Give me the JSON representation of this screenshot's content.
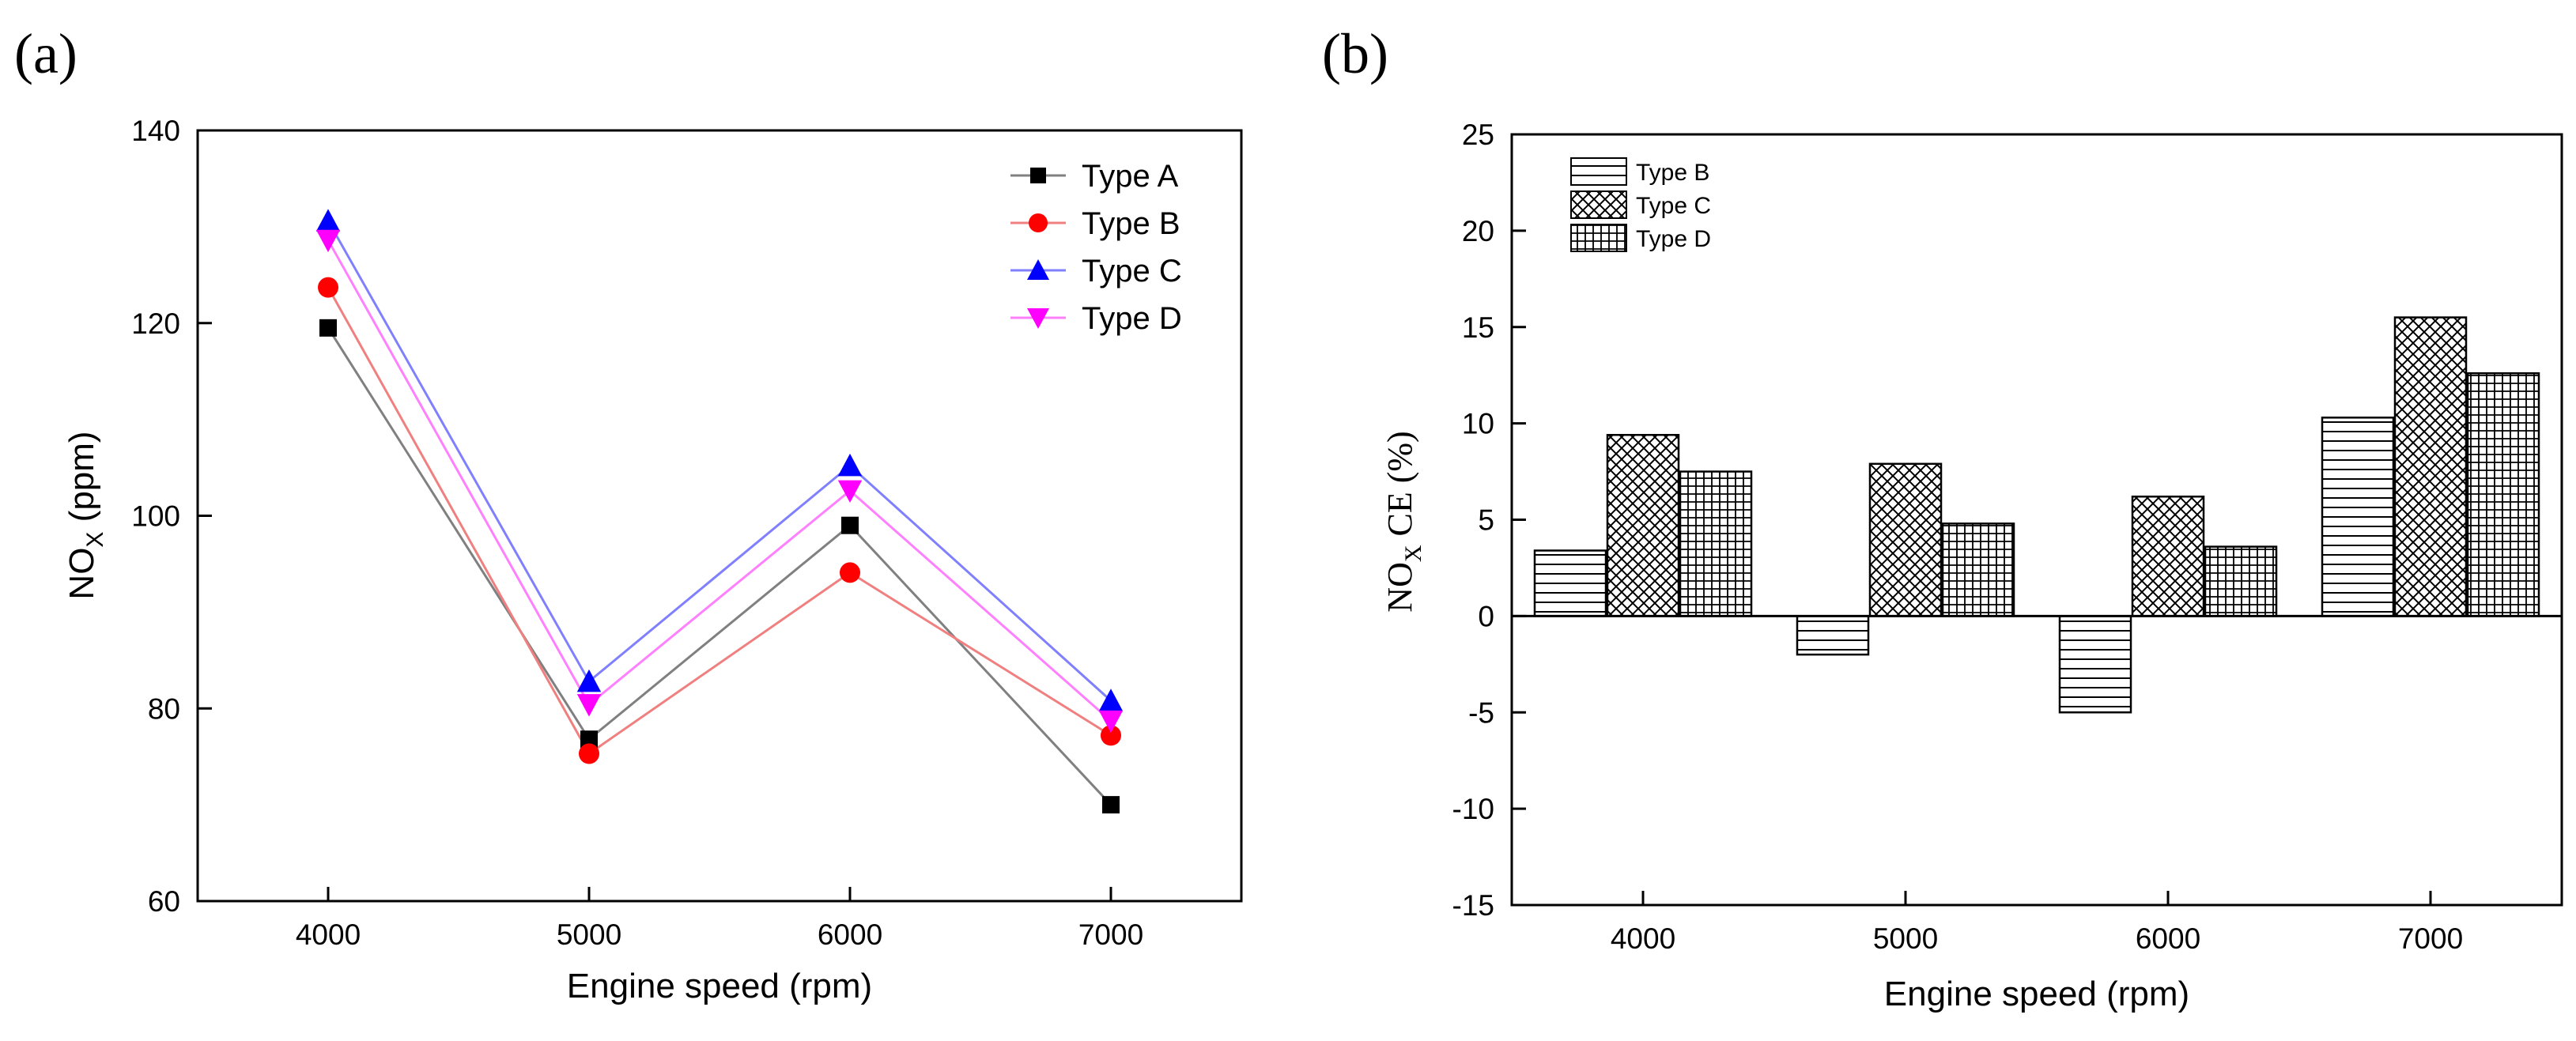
{
  "chart_data": [
    {
      "type": "line",
      "panel_label": "(a)",
      "title": "",
      "xlabel": "Engine speed (rpm)",
      "ylabel_main": "NO",
      "ylabel_sub": "X",
      "ylabel_unit": " (ppm)",
      "x": [
        4000,
        5000,
        6000,
        7000
      ],
      "xticks": [
        "4000",
        "5000",
        "6000",
        "7000"
      ],
      "xlim": [
        3500,
        7500
      ],
      "ylim": [
        60,
        140
      ],
      "yticks": [
        60,
        80,
        100,
        120,
        140
      ],
      "grid": false,
      "legend_position": "top-right",
      "series": [
        {
          "name": "Type A",
          "values": [
            119.5,
            76.8,
            99.0,
            70.0
          ],
          "color": "#808080",
          "marker": "square",
          "marker_color": "#000000"
        },
        {
          "name": "Type B",
          "values": [
            123.7,
            75.3,
            94.1,
            77.2
          ],
          "color": "#f08080",
          "marker": "circle",
          "marker_color": "#ff0000"
        },
        {
          "name": "Type C",
          "values": [
            130.6,
            82.8,
            105.2,
            80.8
          ],
          "color": "#8080ff",
          "marker": "triangle-up",
          "marker_color": "#0000ff"
        },
        {
          "name": "Type D",
          "values": [
            128.6,
            80.4,
            102.6,
            78.7
          ],
          "color": "#ff80ff",
          "marker": "triangle-down",
          "marker_color": "#ff00ff"
        }
      ]
    },
    {
      "type": "bar",
      "panel_label": "(b)",
      "title": "",
      "xlabel": "Engine speed (rpm)",
      "ylabel_main": "NO",
      "ylabel_sub": "X",
      "ylabel_unit": " CE (%)",
      "categories": [
        "4000",
        "5000",
        "6000",
        "7000"
      ],
      "ylim": [
        -15,
        25
      ],
      "yticks": [
        -15,
        -10,
        -5,
        0,
        5,
        10,
        15,
        20,
        25
      ],
      "grid": false,
      "legend_position": "top-left",
      "series": [
        {
          "name": "Type B",
          "values": [
            3.4,
            -2.0,
            -5.0,
            10.3
          ],
          "pattern": "horizontal"
        },
        {
          "name": "Type C",
          "values": [
            9.4,
            7.9,
            6.2,
            15.5
          ],
          "pattern": "crosshatch"
        },
        {
          "name": "Type D",
          "values": [
            7.5,
            4.8,
            3.6,
            12.6
          ],
          "pattern": "grid"
        }
      ]
    }
  ]
}
